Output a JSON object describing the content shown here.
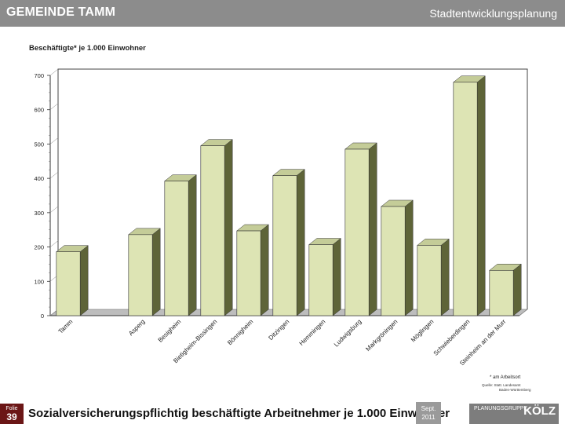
{
  "header": {
    "org": "GEMEINDE TAMM",
    "dept": "Stadtentwicklungsplanung"
  },
  "footer": {
    "folie_label": "Folie",
    "folie_number": "39",
    "title": "Sozialversicherungspflichtig beschäftigte Arbeitnehmer je 1.000 Einwohner",
    "date_line1": "Sept.",
    "date_line2": "2011",
    "logo_text": "PLANUNGSGRUPPE",
    "logo_name": "KÖLZ"
  },
  "chart_data": {
    "type": "bar",
    "title": "Beschäftigte* je 1.000 Einwohner",
    "categories": [
      "Tamm",
      "",
      "Asperg",
      "Besigheim",
      "Bietigheim-Bissingen",
      "Bönnigheim",
      "Ditzingen",
      "Hemmingen",
      "Ludwigsburg",
      "Markgröningen",
      "Möglingen",
      "Schwieberdingen",
      "Steinheim an der Murr"
    ],
    "values": [
      186,
      null,
      236,
      392,
      495,
      247,
      408,
      207,
      485,
      318,
      205,
      680,
      132
    ],
    "ylim": [
      0,
      700
    ],
    "yticks": [
      0,
      100,
      200,
      300,
      400,
      500,
      600,
      700
    ],
    "footnote": "* am Arbeitsort",
    "source_line1": "Quelle: Statt. Landesamt",
    "source_line2": "Baden-Württemberg",
    "colors": {
      "bar_front": "#dde4b4",
      "bar_side": "#5e6438",
      "bar_top": "#c4cc98",
      "axis": "#333333"
    }
  }
}
